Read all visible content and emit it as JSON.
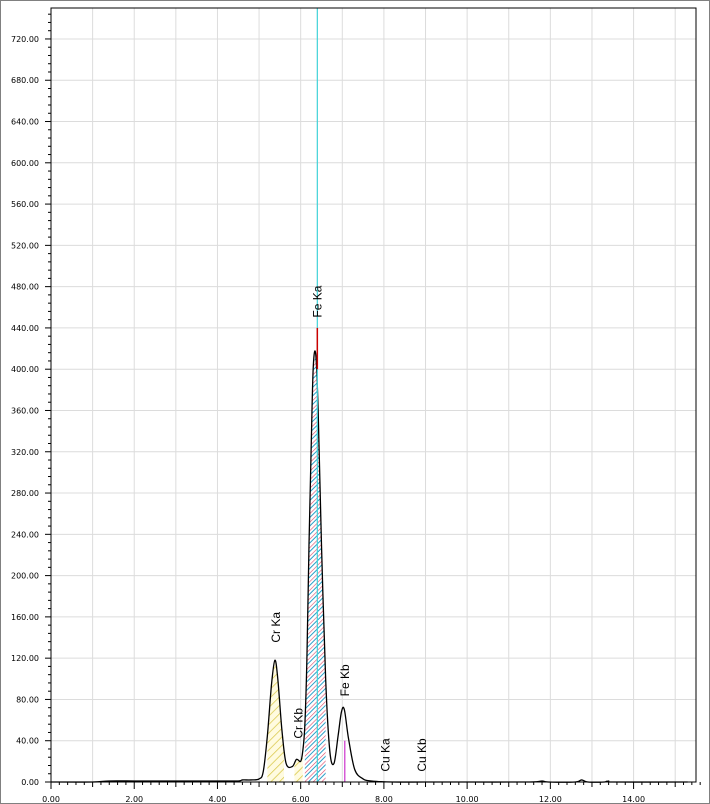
{
  "chart_data": {
    "type": "line",
    "title": "",
    "xlabel": "",
    "ylabel": "",
    "xlim": [
      0,
      15.5
    ],
    "ylim": [
      0,
      750
    ],
    "grid": true,
    "x_ticks": [
      "0.00",
      "2.00",
      "4.00",
      "6.00",
      "8.00",
      "10.00",
      "12.00",
      "14.00"
    ],
    "x_tick_values": [
      0,
      2,
      4,
      6,
      8,
      10,
      12,
      14
    ],
    "y_ticks": [
      "0.00",
      "40.00",
      "80.00",
      "120.00",
      "160.00",
      "200.00",
      "240.00",
      "280.00",
      "320.00",
      "360.00",
      "400.00",
      "440.00",
      "480.00",
      "520.00",
      "560.00",
      "600.00",
      "640.00",
      "680.00",
      "720.00"
    ],
    "y_tick_values": [
      0,
      40,
      80,
      120,
      160,
      200,
      240,
      280,
      320,
      360,
      400,
      440,
      480,
      520,
      560,
      600,
      640,
      680,
      720
    ],
    "series": [
      {
        "values_xy": [
          [
            0.0,
            0
          ],
          [
            1.0,
            0
          ],
          [
            1.4,
            1
          ],
          [
            2.0,
            1
          ],
          [
            3.0,
            1
          ],
          [
            4.0,
            1
          ],
          [
            4.5,
            1
          ],
          [
            4.6,
            2
          ],
          [
            4.8,
            2
          ],
          [
            5.0,
            3
          ],
          [
            5.1,
            10
          ],
          [
            5.2,
            45
          ],
          [
            5.3,
            95
          ],
          [
            5.38,
            118
          ],
          [
            5.45,
            100
          ],
          [
            5.55,
            50
          ],
          [
            5.65,
            18
          ],
          [
            5.8,
            15
          ],
          [
            5.9,
            22
          ],
          [
            6.0,
            20
          ],
          [
            6.05,
            30
          ],
          [
            6.1,
            55
          ],
          [
            6.15,
            120
          ],
          [
            6.2,
            230
          ],
          [
            6.25,
            320
          ],
          [
            6.3,
            400
          ],
          [
            6.36,
            415
          ],
          [
            6.42,
            360
          ],
          [
            6.5,
            230
          ],
          [
            6.6,
            100
          ],
          [
            6.7,
            30
          ],
          [
            6.8,
            18
          ],
          [
            6.9,
            45
          ],
          [
            6.98,
            68
          ],
          [
            7.05,
            70
          ],
          [
            7.15,
            42
          ],
          [
            7.3,
            12
          ],
          [
            7.5,
            3
          ],
          [
            7.7,
            1
          ],
          [
            8.2,
            0
          ],
          [
            9.0,
            0
          ],
          [
            10.0,
            0
          ],
          [
            11.5,
            0
          ],
          [
            11.8,
            1
          ],
          [
            11.95,
            0
          ],
          [
            12.6,
            0
          ],
          [
            12.75,
            2
          ],
          [
            12.9,
            0
          ],
          [
            13.3,
            0
          ],
          [
            13.4,
            1
          ],
          [
            13.5,
            0
          ],
          [
            15.3,
            0
          ]
        ]
      }
    ],
    "peaks": [
      {
        "label": "Cr Ka",
        "x": 5.41,
        "shade_range": [
          5.2,
          5.6
        ],
        "color": "#e6d84a"
      },
      {
        "label": "Cr Kb",
        "x": 5.95,
        "shade_range": [
          5.85,
          6.05
        ],
        "color": "#e6d84a"
      },
      {
        "label": "Fe Ka",
        "x": 6.4,
        "shade_range": [
          6.1,
          6.6
        ],
        "color": "#e04a6a",
        "line_color": "#3fd3d8",
        "marker_color": "#cc0000"
      },
      {
        "label": "Fe Kb",
        "x": 7.06,
        "color": "#cc33cc"
      },
      {
        "label": "Cu Ka",
        "x": 8.04
      },
      {
        "label": "Cu Kb",
        "x": 8.91
      }
    ]
  }
}
